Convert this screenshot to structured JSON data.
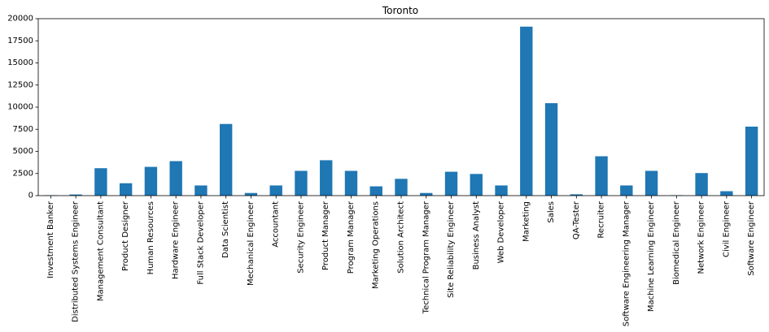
{
  "chart_data": {
    "type": "bar",
    "title": "Toronto",
    "xlabel": "",
    "ylabel": "",
    "ylim": [
      0,
      20000
    ],
    "yticks": [
      0,
      2500,
      5000,
      7500,
      10000,
      12500,
      15000,
      17500,
      20000
    ],
    "bar_color": "#1f77b4",
    "grid": false,
    "legend": "none",
    "categories": [
      "Investment Banker",
      "Distributed Systems Engineer",
      "Management Consultant",
      "Product Designer",
      "Human Resources",
      "Hardware Engineer",
      "Full Stack Developer",
      "Data Scientist",
      "Mechanical Engineer",
      "Accountant",
      "Security Engineer",
      "Product Manager",
      "Program Manager",
      "Marketing Operations",
      "Solution Architect",
      "Technical Program Manager",
      "Site Reliability Engineer",
      "Business Analyst",
      "Web Developer",
      "Marketing",
      "Sales",
      "QA-Tester",
      "Recruiter",
      "Software Engineering Manager",
      "Machine Learning Engineer",
      "Biomedical Engineer",
      "Network Engineer",
      "Civil Engineer",
      "Software Engineer"
    ],
    "values": [
      50,
      130,
      3100,
      1400,
      3250,
      3900,
      1150,
      8100,
      300,
      1150,
      2800,
      4000,
      2800,
      1050,
      1900,
      300,
      2700,
      2450,
      1150,
      19100,
      10450,
      150,
      4450,
      1150,
      2800,
      50,
      2550,
      500,
      7800
    ]
  }
}
